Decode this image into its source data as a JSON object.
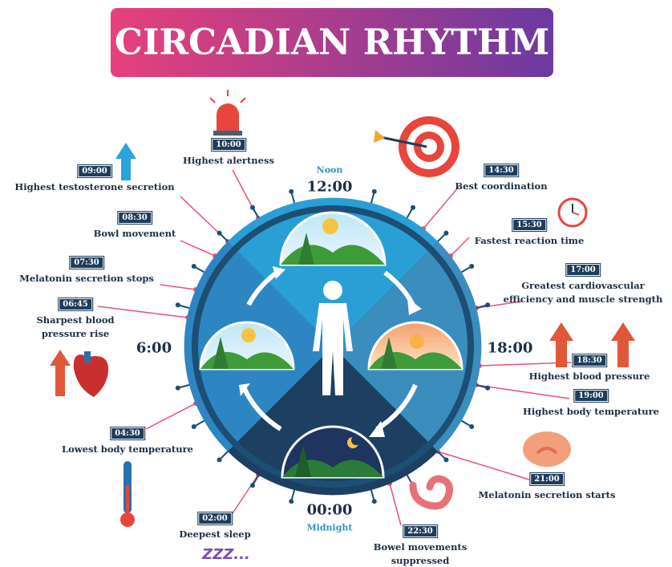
{
  "title": "CIRCADIAN RHYTHM",
  "clock": {
    "noon": "Noon",
    "top": "12:00",
    "left": "6:00",
    "right": "18:00",
    "bottom": "00:00",
    "midnight": "Midnight"
  },
  "events": [
    {
      "time": "09:00",
      "label": "Highest testosterone secretion"
    },
    {
      "time": "10:00",
      "label": "Highest alertness"
    },
    {
      "time": "08:30",
      "label": "Bowl movement"
    },
    {
      "time": "07:30",
      "label": "Melatonin secretion stops"
    },
    {
      "time": "06:45",
      "label": "Sharpest blood pressure rise"
    },
    {
      "time": "04:30",
      "label": "Lowest body temperature"
    },
    {
      "time": "02:00",
      "label": "Deepest sleep"
    },
    {
      "time": "22:30",
      "label": "Bowel movements suppressed"
    },
    {
      "time": "21:00",
      "label": "Melatonin secretion starts"
    },
    {
      "time": "19:00",
      "label": "Highest body temperature"
    },
    {
      "time": "18:30",
      "label": "Highest blood pressure"
    },
    {
      "time": "17:00",
      "label": "Greatest cardiovascular efficiency and muscle strength"
    },
    {
      "time": "15:30",
      "label": "Fastest reaction time"
    },
    {
      "time": "14:30",
      "label": "Best coordination"
    }
  ],
  "sleep_icon": "ZZZ..."
}
